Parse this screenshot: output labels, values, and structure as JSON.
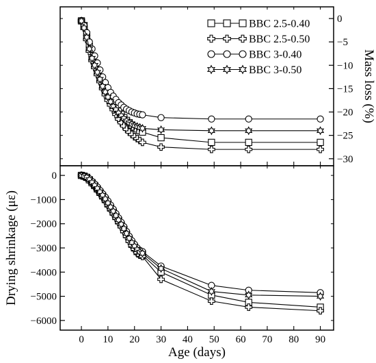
{
  "chart_data": [
    {
      "type": "line",
      "panel": "top",
      "ylabel": "Mass loss (%)",
      "ylabel_side": "right",
      "ylim": [
        -31.5,
        2.5
      ],
      "yticks": [
        0,
        -5,
        -10,
        -15,
        -20,
        -25,
        -30
      ],
      "ytick_labels": [
        "0",
        "−5",
        "−10",
        "−15",
        "−20",
        "−25",
        "−30"
      ],
      "xlim": [
        -8,
        95
      ],
      "legend": {
        "position": "top-right",
        "entries": [
          "BBC 2.5-0.40",
          "BBC 2.5-0.50",
          "BBC 3-0.40",
          "BBC 3-0.50"
        ]
      },
      "series": [
        {
          "name": "BBC 2.5-0.40",
          "marker": "square",
          "x": [
            0,
            1,
            2,
            3,
            4,
            5,
            6,
            7,
            8,
            9,
            10,
            11,
            12,
            13,
            14,
            15,
            16,
            17,
            18,
            19,
            20,
            21,
            22,
            23,
            30,
            49,
            63,
            90
          ],
          "y": [
            -0.5,
            -1.5,
            -3.5,
            -6.0,
            -8.0,
            -9.5,
            -11.0,
            -12.5,
            -14.0,
            -15.2,
            -16.3,
            -17.2,
            -18.2,
            -19.0,
            -19.8,
            -20.5,
            -21.2,
            -21.8,
            -22.3,
            -22.8,
            -23.2,
            -23.6,
            -24.0,
            -24.3,
            -25.5,
            -26.5,
            -26.5,
            -26.5
          ]
        },
        {
          "name": "BBC 2.5-0.50",
          "marker": "plus",
          "x": [
            0,
            1,
            2,
            3,
            4,
            5,
            6,
            7,
            8,
            9,
            10,
            11,
            12,
            13,
            14,
            15,
            16,
            17,
            18,
            19,
            20,
            21,
            22,
            23,
            30,
            49,
            63,
            90
          ],
          "y": [
            -0.5,
            -2.0,
            -4.5,
            -7.0,
            -9.0,
            -10.5,
            -12.0,
            -13.5,
            -15.0,
            -16.3,
            -17.5,
            -18.5,
            -19.5,
            -20.5,
            -21.5,
            -22.3,
            -23.0,
            -23.7,
            -24.3,
            -24.8,
            -25.3,
            -25.7,
            -26.1,
            -26.5,
            -27.5,
            -28.0,
            -28.0,
            -28.0
          ]
        },
        {
          "name": "BBC 3-0.40",
          "marker": "circle",
          "x": [
            0,
            1,
            2,
            3,
            4,
            5,
            6,
            7,
            8,
            9,
            10,
            11,
            12,
            13,
            14,
            15,
            16,
            17,
            18,
            19,
            20,
            21,
            22,
            23,
            30,
            49,
            63,
            90
          ],
          "y": [
            -0.5,
            -1.5,
            -3.0,
            -5.0,
            -6.5,
            -8.0,
            -9.5,
            -11.0,
            -12.5,
            -13.7,
            -14.8,
            -15.8,
            -16.6,
            -17.3,
            -18.0,
            -18.5,
            -19.0,
            -19.4,
            -19.7,
            -20.0,
            -20.2,
            -20.4,
            -20.5,
            -20.6,
            -21.2,
            -21.5,
            -21.5,
            -21.5
          ]
        },
        {
          "name": "BBC 3-0.50",
          "marker": "star",
          "x": [
            0,
            1,
            2,
            3,
            4,
            5,
            6,
            7,
            8,
            9,
            10,
            11,
            12,
            13,
            14,
            15,
            16,
            17,
            18,
            19,
            20,
            21,
            22,
            23,
            30,
            49,
            63,
            90
          ],
          "y": [
            -0.5,
            -2.0,
            -4.0,
            -6.5,
            -8.5,
            -10.0,
            -11.5,
            -13.0,
            -14.5,
            -15.7,
            -16.8,
            -17.8,
            -18.8,
            -19.5,
            -20.2,
            -20.8,
            -21.4,
            -21.9,
            -22.3,
            -22.6,
            -22.9,
            -23.1,
            -23.3,
            -23.5,
            -23.8,
            -24.0,
            -24.0,
            -24.0
          ]
        }
      ]
    },
    {
      "type": "line",
      "panel": "bottom",
      "xlabel": "Age (days)",
      "ylabel": "Drying shrinkage (με)",
      "ylim": [
        -6400,
        400
      ],
      "yticks": [
        0,
        -1000,
        -2000,
        -3000,
        -4000,
        -5000,
        -6000
      ],
      "ytick_labels": [
        "0",
        "−1000",
        "−2000",
        "−3000",
        "−4000",
        "−5000",
        "−6000"
      ],
      "xlim": [
        -8,
        95
      ],
      "xticks": [
        0,
        10,
        20,
        30,
        40,
        50,
        60,
        70,
        80,
        90
      ],
      "xtick_labels": [
        "0",
        "10",
        "20",
        "30",
        "40",
        "50",
        "60",
        "70",
        "80",
        "90"
      ],
      "series": [
        {
          "name": "BBC 2.5-0.40",
          "marker": "square",
          "x": [
            0,
            1,
            2,
            3,
            4,
            5,
            6,
            7,
            8,
            9,
            10,
            11,
            12,
            13,
            14,
            15,
            16,
            17,
            18,
            19,
            20,
            21,
            22,
            23,
            30,
            49,
            63,
            90
          ],
          "y": [
            0,
            -30,
            -80,
            -180,
            -300,
            -420,
            -560,
            -700,
            -850,
            -1000,
            -1180,
            -1350,
            -1520,
            -1700,
            -1880,
            -2050,
            -2250,
            -2450,
            -2650,
            -2850,
            -3000,
            -3150,
            -3250,
            -3300,
            -4000,
            -4950,
            -5250,
            -5450
          ]
        },
        {
          "name": "BBC 2.5-0.50",
          "marker": "plus",
          "x": [
            0,
            1,
            2,
            3,
            4,
            5,
            6,
            7,
            8,
            9,
            10,
            11,
            12,
            13,
            14,
            15,
            16,
            17,
            18,
            19,
            20,
            21,
            22,
            23,
            30,
            49,
            63,
            90
          ],
          "y": [
            0,
            -40,
            -100,
            -200,
            -330,
            -460,
            -600,
            -750,
            -900,
            -1050,
            -1230,
            -1400,
            -1580,
            -1760,
            -1940,
            -2120,
            -2320,
            -2520,
            -2720,
            -2900,
            -3050,
            -3200,
            -3300,
            -3350,
            -4300,
            -5200,
            -5450,
            -5600
          ]
        },
        {
          "name": "BBC 3-0.40",
          "marker": "circle",
          "x": [
            0,
            1,
            2,
            3,
            4,
            5,
            6,
            7,
            8,
            9,
            10,
            11,
            12,
            13,
            14,
            15,
            16,
            17,
            18,
            19,
            20,
            21,
            22,
            23,
            30,
            49,
            63,
            90
          ],
          "y": [
            0,
            -20,
            -60,
            -140,
            -250,
            -360,
            -480,
            -620,
            -760,
            -900,
            -1060,
            -1230,
            -1400,
            -1580,
            -1760,
            -1940,
            -2120,
            -2320,
            -2520,
            -2700,
            -2850,
            -3000,
            -3100,
            -3150,
            -3750,
            -4550,
            -4750,
            -4850
          ]
        },
        {
          "name": "BBC 3-0.50",
          "marker": "star",
          "x": [
            0,
            1,
            2,
            3,
            4,
            5,
            6,
            7,
            8,
            9,
            10,
            11,
            12,
            13,
            14,
            15,
            16,
            17,
            18,
            19,
            20,
            21,
            22,
            23,
            30,
            49,
            63,
            90
          ],
          "y": [
            0,
            -30,
            -80,
            -170,
            -290,
            -410,
            -540,
            -680,
            -820,
            -970,
            -1140,
            -1310,
            -1480,
            -1660,
            -1840,
            -2020,
            -2200,
            -2400,
            -2600,
            -2780,
            -2930,
            -3070,
            -3170,
            -3220,
            -3850,
            -4800,
            -4950,
            -5000
          ]
        }
      ]
    }
  ]
}
